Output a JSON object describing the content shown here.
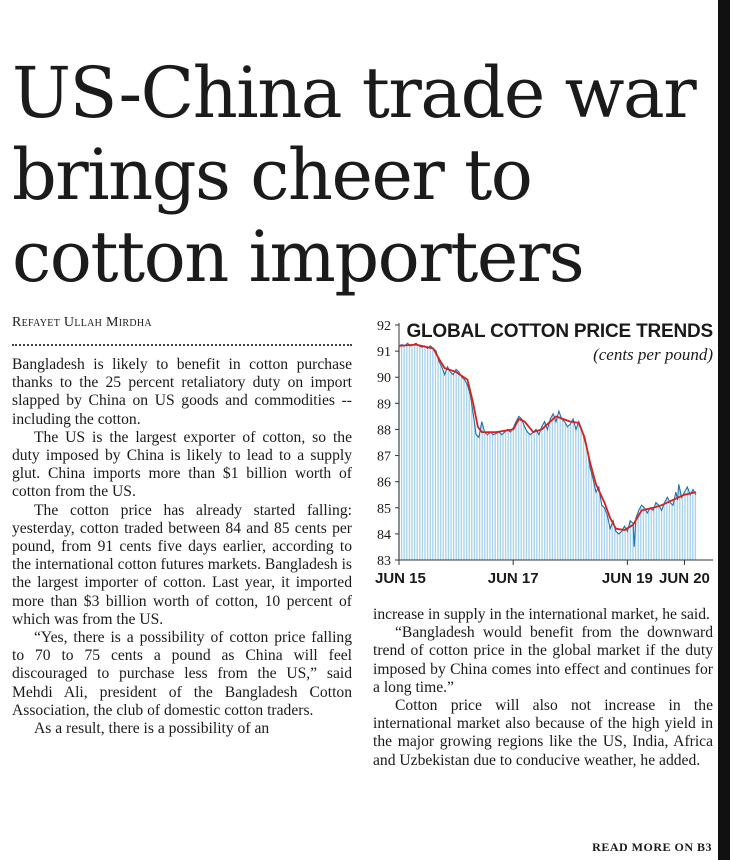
{
  "headline": [
    "US-China trade war",
    "brings cheer to",
    "cotton importers"
  ],
  "byline": "Refayet Ullah Mirdha",
  "body_col1": [
    "Bangladesh is likely to benefit in cotton purchase thanks to the 25 percent retaliatory duty on import slapped by China on US goods and commodities -- including the cotton.",
    "The US is the largest exporter of cotton, so the duty imposed by China is likely to lead to a supply glut. China imports more than $1 billion worth of cotton from the US.",
    "The cotton price has already started falling: yesterday, cotton traded between 84 and 85 cents per pound, from 91 cents five days earlier, according to the international cotton futures markets. Bangladesh is the largest importer of cotton. Last year, it imported more than $3 billion worth of cotton, 10 percent of which was from the US.",
    "“Yes, there is a possibility of cotton price falling to 70 to 75 cents a pound as China will feel discouraged to purchase less from the US,” said Mehdi Ali, president of the Bangladesh Cotton Association, the club of domestic cotton traders.",
    "As a result, there is a possibility of an"
  ],
  "body_col2": [
    "increase in supply in the international market, he said.",
    "“Bangladesh would benefit from the downward trend of cotton price in the global market if the duty imposed by China comes into effect and continues for a long time.”",
    "Cotton price will also not increase in the international market also because of the high yield in the major growing regions like the US, India, Africa and Uzbekistan due to conducive weather, he added."
  ],
  "read_more": "READ MORE ON B3",
  "colors": {
    "bar": "#a8d4ee",
    "line": "#1f6fa8",
    "trend": "#d9201c",
    "ink": "#1a1a1a"
  },
  "chart_data": {
    "type": "area",
    "title": "GLOBAL COTTON PRICE TRENDS",
    "subtitle": "(cents per pound)",
    "ylim": [
      83,
      92
    ],
    "yticks": [
      83,
      84,
      85,
      86,
      87,
      88,
      89,
      90,
      91,
      92
    ],
    "xticks": [
      {
        "label": "JUN 15",
        "x": 0
      },
      {
        "label": "JUN 17",
        "x": 2
      },
      {
        "label": "JUN 19",
        "x": 4
      },
      {
        "label": "JUN 20",
        "x": 5
      }
    ],
    "xlim": [
      0,
      5.5
    ],
    "series": [
      {
        "points": [
          [
            0,
            91.2
          ],
          [
            0.05,
            91.25
          ],
          [
            0.1,
            91.2
          ],
          [
            0.15,
            91.3
          ],
          [
            0.2,
            91.2
          ],
          [
            0.25,
            91.25
          ],
          [
            0.3,
            91.3
          ],
          [
            0.35,
            91.2
          ],
          [
            0.4,
            91.15
          ],
          [
            0.45,
            91.2
          ],
          [
            0.5,
            91.1
          ],
          [
            0.55,
            91.2
          ],
          [
            0.6,
            91.1
          ],
          [
            0.65,
            91.0
          ],
          [
            0.7,
            90.6
          ],
          [
            0.75,
            90.4
          ],
          [
            0.8,
            90.1
          ],
          [
            0.85,
            90.4
          ],
          [
            0.9,
            90.2
          ],
          [
            0.95,
            90.1
          ],
          [
            1.0,
            90.3
          ],
          [
            1.05,
            90.2
          ],
          [
            1.1,
            90.0
          ],
          [
            1.15,
            89.9
          ],
          [
            1.2,
            89.7
          ],
          [
            1.25,
            89.3
          ],
          [
            1.3,
            88.6
          ],
          [
            1.35,
            87.8
          ],
          [
            1.4,
            87.7
          ],
          [
            1.45,
            88.3
          ],
          [
            1.5,
            87.9
          ],
          [
            1.55,
            87.8
          ],
          [
            1.6,
            87.9
          ],
          [
            1.65,
            87.8
          ],
          [
            1.7,
            87.85
          ],
          [
            1.75,
            87.9
          ],
          [
            1.8,
            87.8
          ],
          [
            1.85,
            87.9
          ],
          [
            1.9,
            88.0
          ],
          [
            1.95,
            87.9
          ],
          [
            2.0,
            88.05
          ],
          [
            2.05,
            88.3
          ],
          [
            2.1,
            88.5
          ],
          [
            2.15,
            88.4
          ],
          [
            2.2,
            88.1
          ],
          [
            2.25,
            87.9
          ],
          [
            2.3,
            87.8
          ],
          [
            2.35,
            87.9
          ],
          [
            2.4,
            88.0
          ],
          [
            2.45,
            87.8
          ],
          [
            2.5,
            88.1
          ],
          [
            2.55,
            88.3
          ],
          [
            2.6,
            88.0
          ],
          [
            2.65,
            88.4
          ],
          [
            2.7,
            88.6
          ],
          [
            2.75,
            88.3
          ],
          [
            2.8,
            88.7
          ],
          [
            2.85,
            88.4
          ],
          [
            2.9,
            88.3
          ],
          [
            2.95,
            88.1
          ],
          [
            3.0,
            88.2
          ],
          [
            3.05,
            88.4
          ],
          [
            3.1,
            88.0
          ],
          [
            3.15,
            88.3
          ],
          [
            3.2,
            88.0
          ],
          [
            3.25,
            87.6
          ],
          [
            3.3,
            87.2
          ],
          [
            3.35,
            86.5
          ],
          [
            3.4,
            86.1
          ],
          [
            3.45,
            85.6
          ],
          [
            3.5,
            85.8
          ],
          [
            3.55,
            85.1
          ],
          [
            3.6,
            85.0
          ],
          [
            3.65,
            84.7
          ],
          [
            3.7,
            84.2
          ],
          [
            3.75,
            84.5
          ],
          [
            3.8,
            84.1
          ],
          [
            3.85,
            84.0
          ],
          [
            3.9,
            84.1
          ],
          [
            3.95,
            84.3
          ],
          [
            4.0,
            84.1
          ],
          [
            4.05,
            84.5
          ],
          [
            4.1,
            84.4
          ],
          [
            4.12,
            83.5
          ],
          [
            4.15,
            84.6
          ],
          [
            4.2,
            84.9
          ],
          [
            4.25,
            85.1
          ],
          [
            4.3,
            85.0
          ],
          [
            4.35,
            84.8
          ],
          [
            4.4,
            85.0
          ],
          [
            4.45,
            84.9
          ],
          [
            4.5,
            85.2
          ],
          [
            4.55,
            85.1
          ],
          [
            4.6,
            84.9
          ],
          [
            4.65,
            85.2
          ],
          [
            4.7,
            85.4
          ],
          [
            4.75,
            85.2
          ],
          [
            4.8,
            85.1
          ],
          [
            4.85,
            85.6
          ],
          [
            4.88,
            85.3
          ],
          [
            4.9,
            85.9
          ],
          [
            4.95,
            85.4
          ],
          [
            5.0,
            85.6
          ],
          [
            5.05,
            85.8
          ],
          [
            5.1,
            85.5
          ],
          [
            5.15,
            85.7
          ],
          [
            5.2,
            85.5
          ]
        ]
      },
      {
        "points": [
          [
            0,
            91.2
          ],
          [
            0.3,
            91.25
          ],
          [
            0.6,
            91.1
          ],
          [
            0.7,
            90.7
          ],
          [
            0.8,
            90.35
          ],
          [
            1.0,
            90.2
          ],
          [
            1.2,
            89.9
          ],
          [
            1.3,
            89.0
          ],
          [
            1.38,
            88.1
          ],
          [
            1.45,
            87.9
          ],
          [
            1.7,
            87.9
          ],
          [
            2.0,
            88.0
          ],
          [
            2.1,
            88.4
          ],
          [
            2.2,
            88.3
          ],
          [
            2.35,
            87.9
          ],
          [
            2.5,
            88.0
          ],
          [
            2.6,
            88.2
          ],
          [
            2.75,
            88.5
          ],
          [
            3.0,
            88.3
          ],
          [
            3.15,
            88.25
          ],
          [
            3.25,
            87.7
          ],
          [
            3.35,
            86.7
          ],
          [
            3.45,
            85.9
          ],
          [
            3.6,
            85.2
          ],
          [
            3.7,
            84.6
          ],
          [
            3.8,
            84.2
          ],
          [
            3.95,
            84.15
          ],
          [
            4.1,
            84.35
          ],
          [
            4.25,
            84.9
          ],
          [
            4.45,
            85.0
          ],
          [
            4.6,
            85.1
          ],
          [
            4.8,
            85.3
          ],
          [
            5.0,
            85.5
          ],
          [
            5.2,
            85.6
          ]
        ]
      }
    ]
  }
}
